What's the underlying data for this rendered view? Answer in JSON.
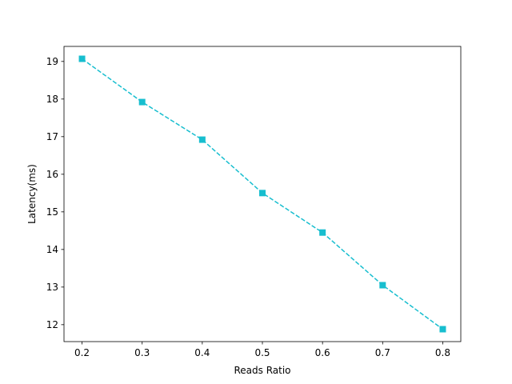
{
  "chart_data": {
    "type": "line",
    "title": "",
    "xlabel": "Reads Ratio",
    "ylabel": "Latency(ms)",
    "xlim": [
      0.17,
      0.83
    ],
    "ylim": [
      11.55,
      19.4
    ],
    "xticks": [
      "0.2",
      "0.3",
      "0.4",
      "0.5",
      "0.6",
      "0.7",
      "0.8"
    ],
    "yticks": [
      "12",
      "13",
      "14",
      "15",
      "16",
      "17",
      "18",
      "19"
    ],
    "grid": false,
    "legend": "none",
    "series": [
      {
        "x": [
          0.2,
          0.3,
          0.4,
          0.5,
          0.6,
          0.7,
          0.8
        ],
        "y": [
          19.07,
          17.92,
          16.92,
          15.5,
          14.45,
          13.05,
          11.88
        ],
        "color": "#17becf",
        "line_style": "dashed",
        "marker": "square"
      }
    ]
  }
}
